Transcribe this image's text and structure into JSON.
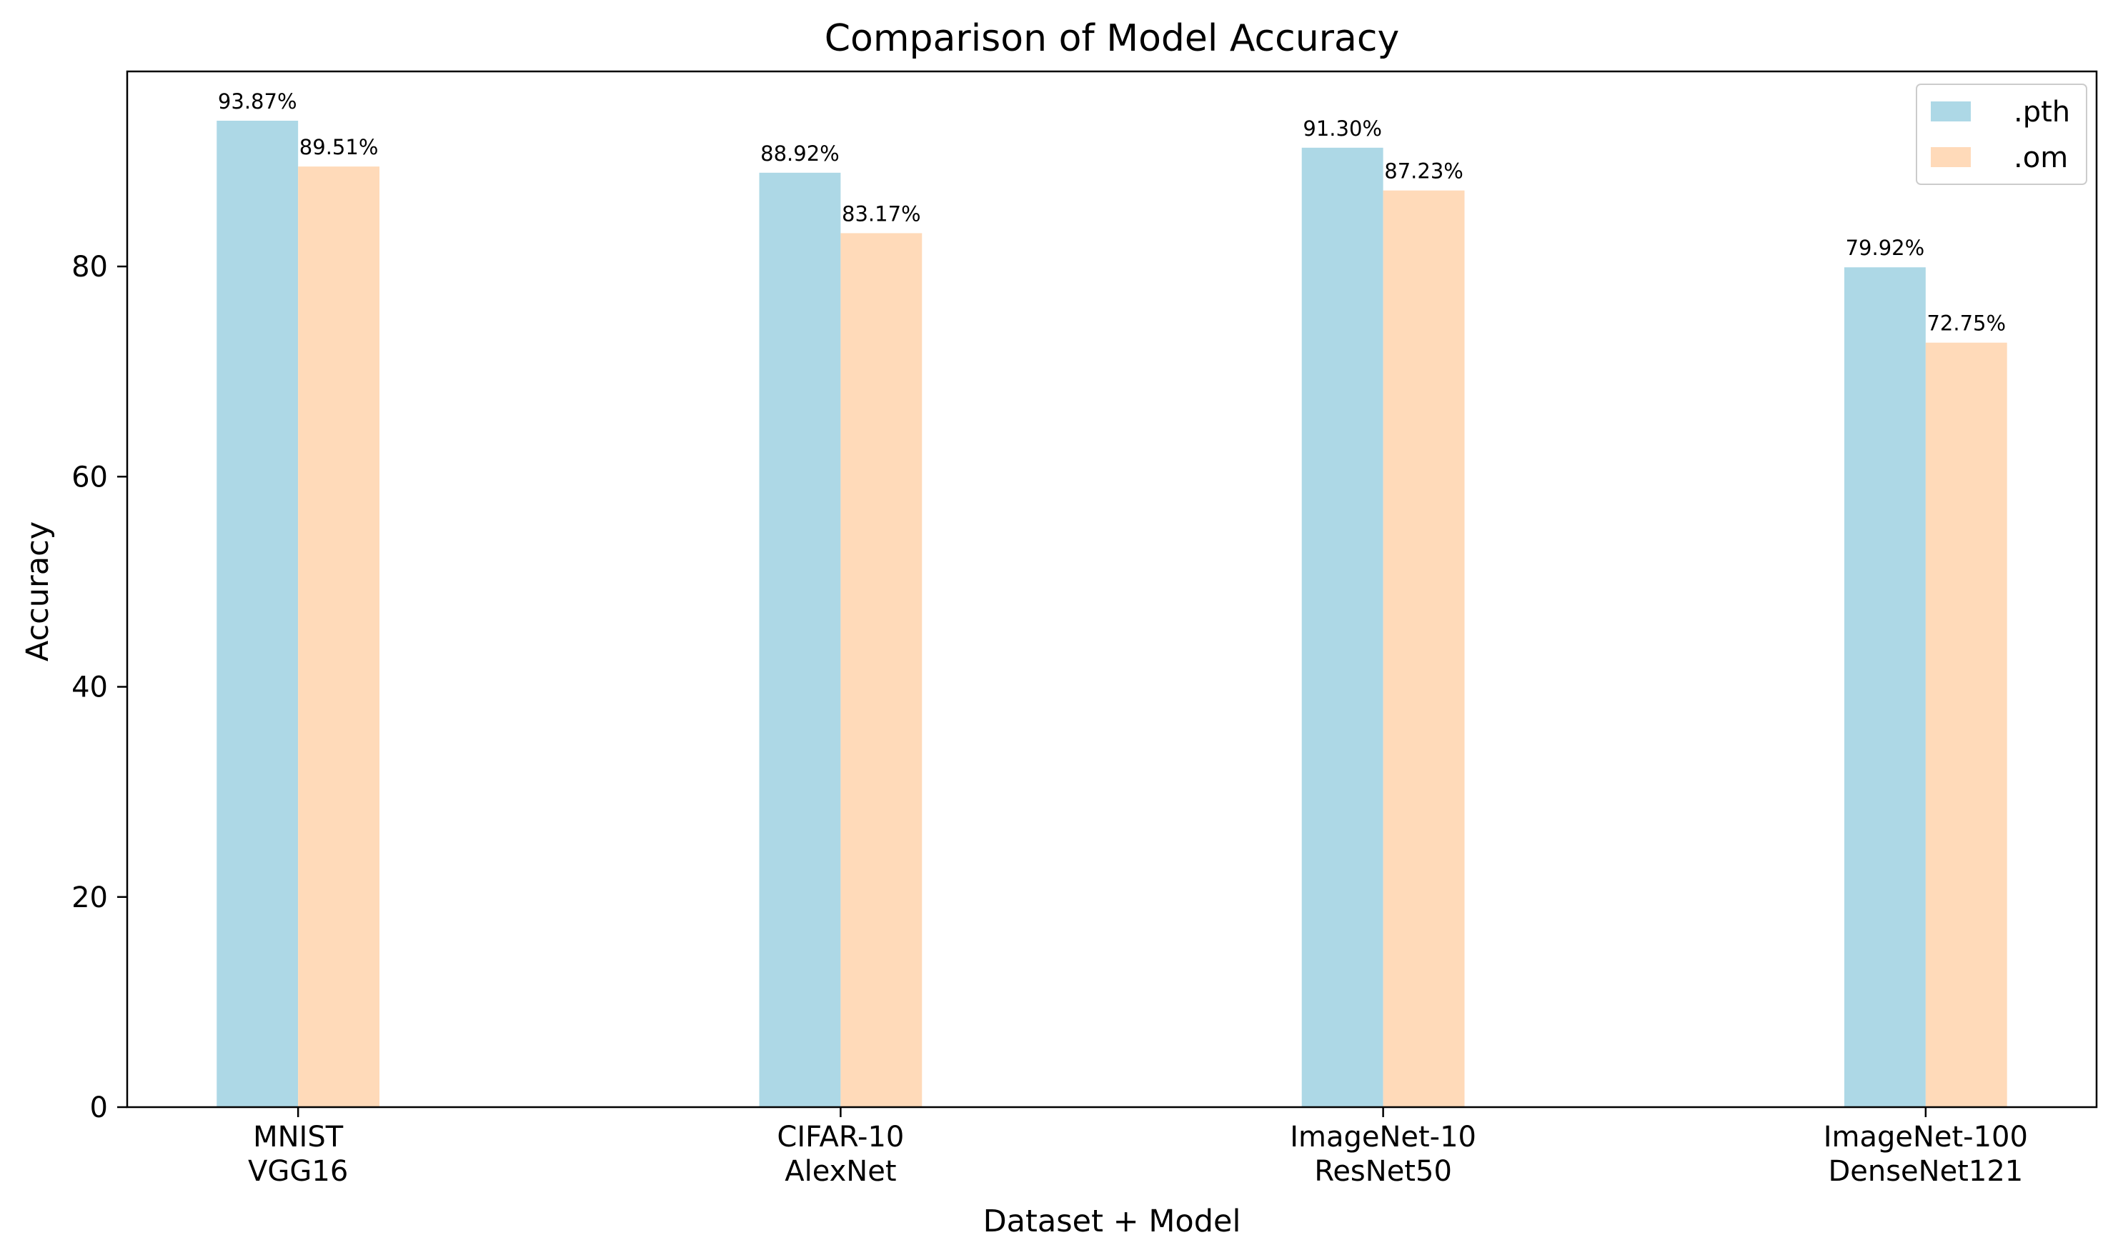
{
  "chart_data": {
    "type": "bar",
    "title": "Comparison of Model Accuracy",
    "xlabel": "Dataset + Model",
    "ylabel": "Accuracy",
    "categories": [
      [
        "MNIST",
        "VGG16"
      ],
      [
        "CIFAR-10",
        "AlexNet"
      ],
      [
        "ImageNet-10",
        "ResNet50"
      ],
      [
        "ImageNet-100",
        "DenseNet121"
      ]
    ],
    "series": [
      {
        "name": ".pth",
        "color": "#add8e6",
        "values": [
          93.87,
          88.92,
          91.3,
          79.92
        ],
        "labels": [
          "93.87%",
          "88.92%",
          "91.30%",
          "79.92%"
        ]
      },
      {
        "name": ".om",
        "color": "#ffdab9",
        "values": [
          89.51,
          83.17,
          87.23,
          72.75
        ],
        "labels": [
          "89.51%",
          "83.17%",
          "87.23%",
          "72.75%"
        ]
      }
    ],
    "ylim": [
      0,
      98.56
    ],
    "yticks": [
      0,
      20,
      40,
      60,
      80
    ],
    "grid": false,
    "legend_position": "top-right"
  }
}
